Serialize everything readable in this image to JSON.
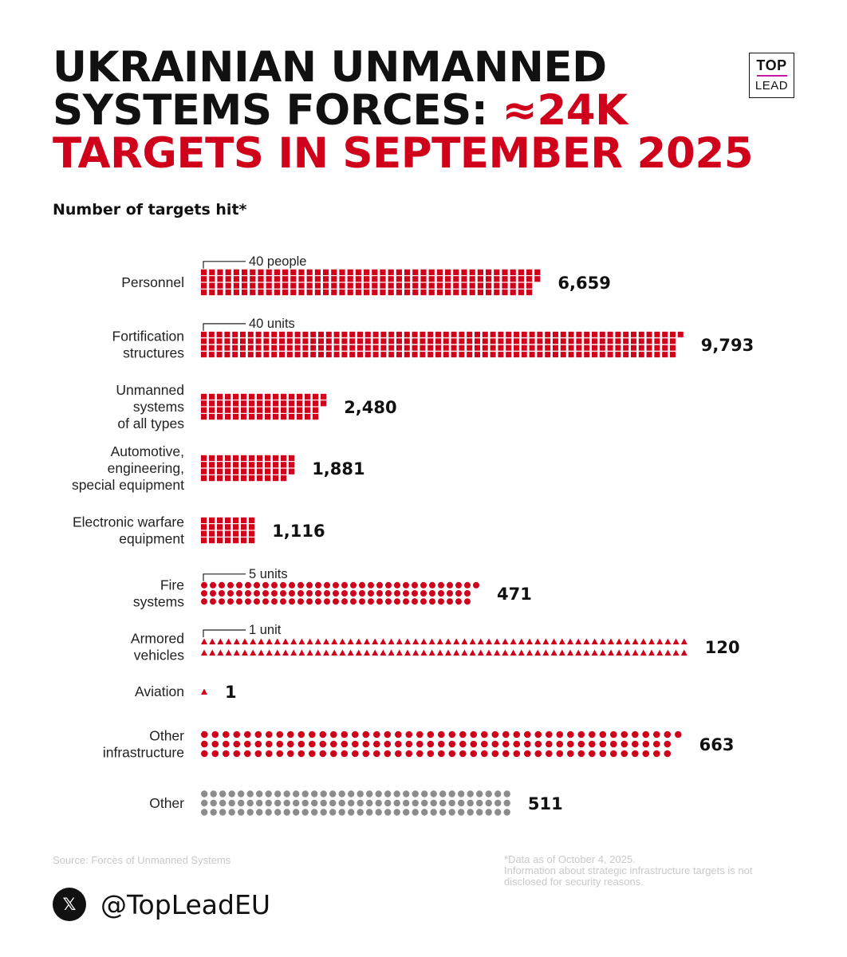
{
  "title": {
    "line1": "UKRAINIAN UNMANNED",
    "line2_black": "SYSTEMS FORCES: ",
    "line2_red": "≈24K",
    "line3": "TARGETS IN SEPTEMBER 2025"
  },
  "logo": {
    "line1": "TOP",
    "line2": "LEAD"
  },
  "subtitle": "Number of targets hit*",
  "colors": {
    "accent": "#d0021b",
    "other": "#8c8c8c",
    "text": "#111111"
  },
  "chart_data": {
    "type": "pictogram",
    "title": "UKRAINIAN UNMANNED SYSTEMS FORCES: ≈24K TARGETS IN SEPTEMBER 2025",
    "ylabel": "Number of targets hit*",
    "categories": [
      "Personnel",
      "Fortification structures",
      "Unmanned systems of all types",
      "Automotive, engineering, special equipment",
      "Electronic warfare equipment",
      "Fire systems",
      "Armored vehicles",
      "Aviation",
      "Other infrastructure",
      "Other"
    ],
    "rows": [
      {
        "label": [
          "Personnel"
        ],
        "value": 6659,
        "value_label": "6,659",
        "unit_value": 40,
        "legend": "40 people",
        "shape": "square",
        "color": "red",
        "icons": 166
      },
      {
        "label": [
          "Fortification",
          "structures"
        ],
        "value": 9793,
        "value_label": "9,793",
        "unit_value": 40,
        "legend": "40 units",
        "shape": "square",
        "color": "red",
        "icons": 245
      },
      {
        "label": [
          "Unmanned",
          "systems",
          "of all types"
        ],
        "value": 2480,
        "value_label": "2,480",
        "unit_value": 40,
        "legend": "",
        "shape": "square",
        "color": "red",
        "icons": 62
      },
      {
        "label": [
          "Automotive,",
          "engineering,",
          "special equipment"
        ],
        "value": 1881,
        "value_label": "1,881",
        "unit_value": 40,
        "legend": "",
        "shape": "square",
        "color": "red",
        "icons": 47
      },
      {
        "label": [
          "Electronic warfare",
          "equipment"
        ],
        "value": 1116,
        "value_label": "1,116",
        "unit_value": 40,
        "legend": "",
        "shape": "square",
        "color": "red",
        "icons": 28
      },
      {
        "label": [
          "Fire",
          "systems"
        ],
        "value": 471,
        "value_label": "471",
        "unit_value": 5,
        "legend": "5 units",
        "shape": "dot",
        "color": "red",
        "icons": 94
      },
      {
        "label": [
          "Armored",
          "vehicles"
        ],
        "value": 120,
        "value_label": "120",
        "unit_value": 1,
        "legend": "1 unit",
        "shape": "triangle",
        "color": "red",
        "icons": 120
      },
      {
        "label": [
          "Aviation"
        ],
        "value": 1,
        "value_label": "1",
        "unit_value": 1,
        "legend": "",
        "shape": "triangle",
        "color": "red",
        "icons": 1
      },
      {
        "label": [
          "Other",
          "infrastructure"
        ],
        "value": 663,
        "value_label": "663",
        "unit_value": 5,
        "legend": "",
        "shape": "dot",
        "color": "red",
        "icons": 133
      },
      {
        "label": [
          "Other"
        ],
        "value": 511,
        "value_label": "511",
        "unit_value": 5,
        "legend": "",
        "shape": "dot",
        "color": "gray",
        "icons": 102
      }
    ]
  },
  "footer": {
    "source": "Source: Forces of Unmanned Systems",
    "note": [
      "*Data as of October 4, 2025.",
      "Information about strategic infrastructure targets is not",
      "disclosed for security reasons."
    ],
    "social_icon": "x-logo-icon",
    "social_icon_glyph": "𝕏",
    "handle": "@TopLeadEU"
  }
}
